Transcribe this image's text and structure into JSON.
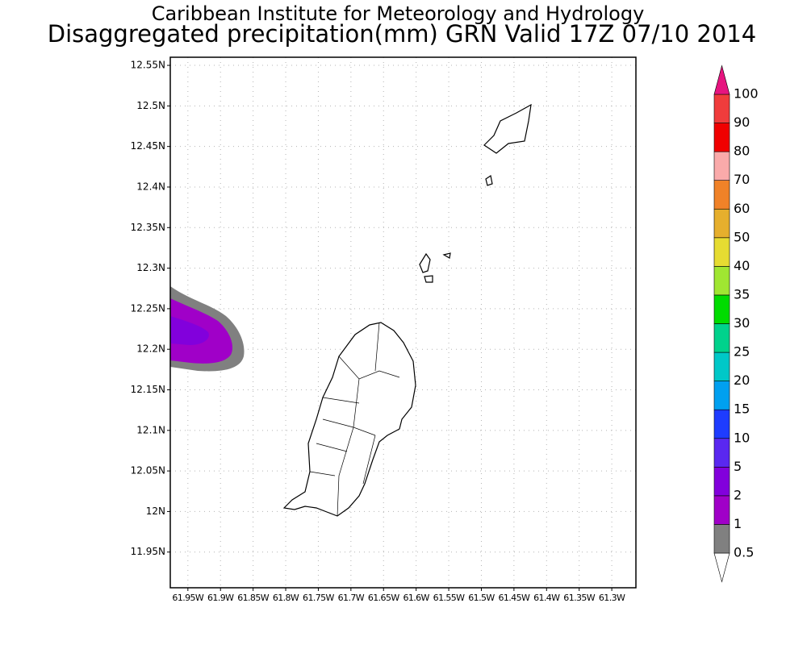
{
  "title": "Caribbean Institute for Meteorology and Hydrology",
  "subtitle": "Disaggregated precipitation(mm) GRN Valid 17Z 07/10 2014",
  "map": {
    "lat_ticks": [
      {
        "value": 12.55,
        "label": "12.55N"
      },
      {
        "value": 12.5,
        "label": "12.5N"
      },
      {
        "value": 12.45,
        "label": "12.45N"
      },
      {
        "value": 12.4,
        "label": "12.4N"
      },
      {
        "value": 12.35,
        "label": "12.35N"
      },
      {
        "value": 12.3,
        "label": "12.3N"
      },
      {
        "value": 12.25,
        "label": "12.25N"
      },
      {
        "value": 12.2,
        "label": "12.2N"
      },
      {
        "value": 12.15,
        "label": "12.15N"
      },
      {
        "value": 12.1,
        "label": "12.1N"
      },
      {
        "value": 12.05,
        "label": "12.05N"
      },
      {
        "value": 12,
        "label": "12N"
      },
      {
        "value": 11.95,
        "label": "11.95N"
      }
    ],
    "lon_ticks": [
      {
        "value": -61.95,
        "label": "61.95W"
      },
      {
        "value": -61.9,
        "label": "61.9W"
      },
      {
        "value": -61.85,
        "label": "61.85W"
      },
      {
        "value": -61.8,
        "label": "61.8W"
      },
      {
        "value": -61.75,
        "label": "61.75W"
      },
      {
        "value": -61.7,
        "label": "61.7W"
      },
      {
        "value": -61.65,
        "label": "61.65W"
      },
      {
        "value": -61.6,
        "label": "61.6W"
      },
      {
        "value": -61.55,
        "label": "61.55W"
      },
      {
        "value": -61.5,
        "label": "61.5W"
      },
      {
        "value": -61.45,
        "label": "61.45W"
      },
      {
        "value": -61.4,
        "label": "61.4W"
      },
      {
        "value": -61.35,
        "label": "61.35W"
      },
      {
        "value": -61.3,
        "label": "61.3W"
      }
    ],
    "lat_range": [
      11.906,
      12.56
    ],
    "lon_range": [
      -61.977,
      -61.263
    ]
  },
  "colorbar": {
    "levels": [
      0.5,
      1,
      2,
      5,
      10,
      15,
      20,
      25,
      30,
      35,
      40,
      50,
      60,
      70,
      80,
      90,
      100
    ],
    "colors": [
      "#ffffff",
      "#808080",
      "#a000c8",
      "#8200dc",
      "#5a28f0",
      "#1e3cff",
      "#00a0f0",
      "#00c8c8",
      "#00d28c",
      "#00dc00",
      "#a0e632",
      "#e6dc32",
      "#e6af2d",
      "#f08228",
      "#faaaaa",
      "#f00000",
      "#f03c3c",
      "#e6147f"
    ]
  }
}
